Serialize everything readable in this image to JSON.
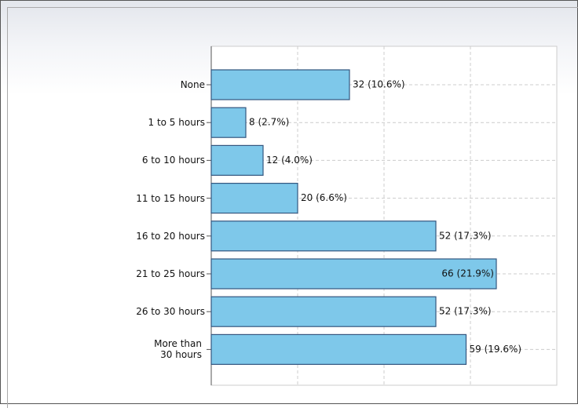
{
  "chart_data": {
    "type": "bar",
    "orientation": "horizontal",
    "categories": [
      "None",
      "1 to 5 hours",
      "6 to 10 hours",
      "11 to 15 hours",
      "16 to 20 hours",
      "21 to 25 hours",
      "26 to 30 hours",
      "More than 30 hours"
    ],
    "values": [
      32,
      8,
      12,
      20,
      52,
      66,
      52,
      59
    ],
    "value_labels": [
      "32 (10.6%)",
      "8 (2.7%)",
      "12 (4.0%)",
      "20 (6.6%)",
      "52 (17.3%)",
      "66 (21.9%)",
      "52 (17.3%)",
      "59 (19.6%)"
    ],
    "color": "#7ec8ea",
    "xlim": [
      0,
      80
    ],
    "xticks": [
      0,
      20,
      40,
      60,
      80
    ],
    "grid": true
  }
}
